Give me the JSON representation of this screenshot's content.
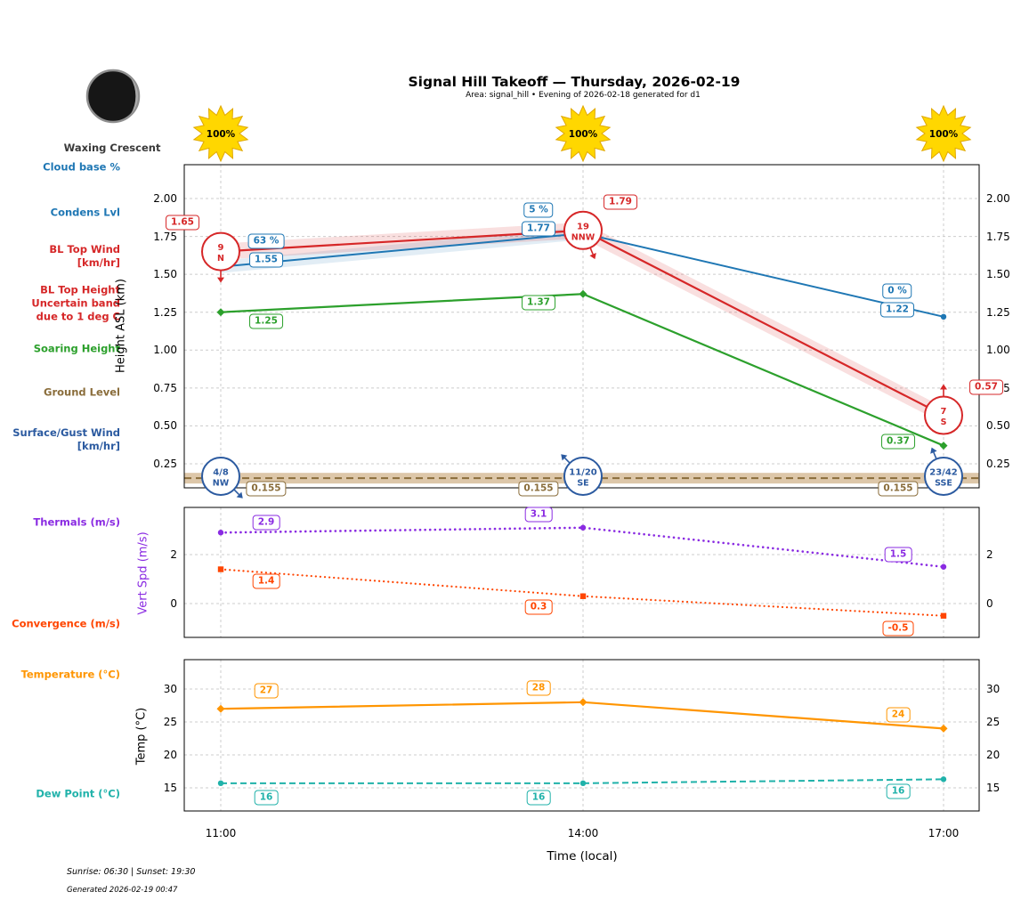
{
  "header": {
    "title": "Signal Hill Takeoff — Thursday, 2026-02-19",
    "subtitle": "Area: signal_hill • Evening of 2026-02-18 generated for d1"
  },
  "moon": {
    "label": "Waxing Crescent"
  },
  "sun": {
    "values": [
      "100%",
      "100%",
      "100%"
    ]
  },
  "x_axis": {
    "label": "Time (local)",
    "ticks": [
      "11:00",
      "14:00",
      "17:00"
    ]
  },
  "footer": {
    "sun_times": "Sunrise: 06:30 | Sunset: 19:30",
    "generated": "Generated 2026-02-19 00:47"
  },
  "left_labels": [
    {
      "lines": [
        "Cloud base %"
      ],
      "color": "#1f77b4"
    },
    {
      "lines": [
        "Condens Lvl"
      ],
      "color": "#1f77b4"
    },
    {
      "lines": [
        "BL Top Wind",
        "[km/hr]"
      ],
      "color": "#d62728"
    },
    {
      "lines": [
        "BL Top Height",
        "Uncertain band",
        "due to 1 deg C"
      ],
      "color": "#d62728"
    },
    {
      "lines": [
        "Soaring Height"
      ],
      "color": "#2ca02c"
    },
    {
      "lines": [
        "Ground Level"
      ],
      "color": "#8a6d3b"
    },
    {
      "lines": [
        "Surface/Gust Wind",
        "[km/hr]"
      ],
      "color": "#2b5aa0"
    },
    {
      "lines": [
        "Thermals (m/s)"
      ],
      "color": "#8a2be2"
    },
    {
      "lines": [
        "Convergence (m/s)"
      ],
      "color": "#ff4500"
    },
    {
      "lines": [
        "Temperature (°C)"
      ],
      "color": "#ff9500"
    },
    {
      "lines": [
        "Dew Point (°C)"
      ],
      "color": "#20b2aa"
    }
  ],
  "chart_data": [
    {
      "type": "line",
      "ylabel": "Height ASL (km)",
      "x": [
        "11:00",
        "14:00",
        "17:00"
      ],
      "ylim": [
        0.09,
        2.22
      ],
      "yticks": [
        "2.00",
        "1.75",
        "1.50",
        "1.25",
        "1.00",
        "0.75",
        "0.50",
        "0.25"
      ],
      "grid": true,
      "series": [
        {
          "name": "BL Top Height",
          "color": "#d62728",
          "style": "solid",
          "marker": "none",
          "values": [
            1.65,
            1.79,
            0.57
          ],
          "labels": [
            "1.65",
            "1.79",
            "0.57"
          ],
          "uncertain_band": true
        },
        {
          "name": "Condens Lvl",
          "color": "#1f77b4",
          "style": "solid",
          "marker": "circle",
          "values": [
            1.55,
            1.77,
            1.22
          ],
          "labels": [
            "1.55",
            "1.77",
            "1.22"
          ]
        },
        {
          "name": "Cloud base %",
          "color": "#1f77b4",
          "style": "labels-only",
          "values": null,
          "labels": [
            "63 %",
            "5 %",
            "0 %"
          ]
        },
        {
          "name": "Soaring Height",
          "color": "#2ca02c",
          "style": "solid",
          "marker": "diamond",
          "values": [
            1.25,
            1.37,
            0.37
          ],
          "labels": [
            "1.25",
            "1.37",
            "0.37"
          ]
        },
        {
          "name": "Ground Level",
          "color": "#8a6d3b",
          "style": "dashed",
          "marker": "none",
          "values": [
            0.155,
            0.155,
            0.155
          ],
          "labels": [
            "0.155",
            "0.155",
            "0.155"
          ]
        }
      ],
      "wind_bl_top": [
        {
          "speed": "9",
          "dir": "N"
        },
        {
          "speed": "19",
          "dir": "NNW"
        },
        {
          "speed": "7",
          "dir": "S"
        }
      ],
      "wind_surface": [
        {
          "speed": "4/8",
          "dir": "NW"
        },
        {
          "speed": "11/20",
          "dir": "SE"
        },
        {
          "speed": "23/42",
          "dir": "SSE"
        }
      ]
    },
    {
      "type": "line",
      "ylabel": "Vert Spd (m/s)",
      "x": [
        "11:00",
        "14:00",
        "17:00"
      ],
      "ylim": [
        -1.4,
        3.9
      ],
      "yticks": [
        "2",
        "0"
      ],
      "grid": true,
      "series": [
        {
          "name": "Thermals (m/s)",
          "color": "#8a2be2",
          "style": "dotted",
          "marker": "circle",
          "values": [
            2.9,
            3.1,
            1.5
          ],
          "labels": [
            "2.9",
            "3.1",
            "1.5"
          ]
        },
        {
          "name": "Convergence (m/s)",
          "color": "#ff4500",
          "style": "dotted",
          "marker": "square",
          "values": [
            1.4,
            0.3,
            -0.5
          ],
          "labels": [
            "1.4",
            "0.3",
            "-0.5"
          ]
        }
      ]
    },
    {
      "type": "line",
      "ylabel": "Temp (°C)",
      "x": [
        "11:00",
        "14:00",
        "17:00"
      ],
      "ylim": [
        11.5,
        34.5
      ],
      "yticks": [
        "30",
        "25",
        "20",
        "15"
      ],
      "grid": true,
      "series": [
        {
          "name": "Temperature (°C)",
          "color": "#ff9500",
          "style": "solid",
          "marker": "diamond",
          "values": [
            27,
            28,
            24
          ],
          "labels": [
            "27",
            "28",
            "24"
          ]
        },
        {
          "name": "Dew Point (°C)",
          "color": "#20b2aa",
          "style": "dashed",
          "marker": "circle",
          "values": [
            16,
            16,
            16
          ],
          "plot_values": [
            15.7,
            15.7,
            16.3
          ],
          "labels": [
            "16",
            "16",
            "16"
          ]
        }
      ]
    }
  ]
}
